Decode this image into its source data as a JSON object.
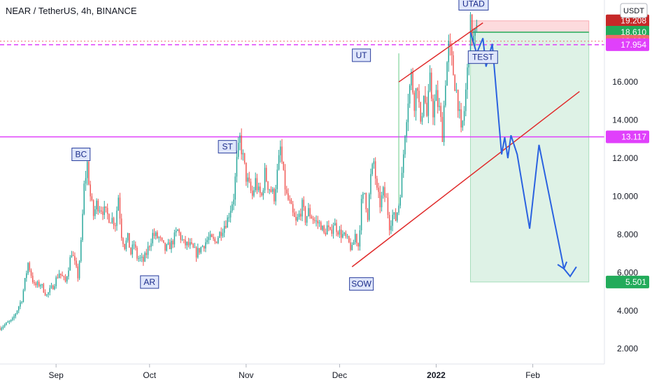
{
  "header": {
    "title": "NEAR / TetherUS, 4h, BINANCE"
  },
  "currency_label": "USDT",
  "chart_data": {
    "type": "candlestick",
    "title": "NEAR / TetherUS, 4h, BINANCE",
    "y_ticks": [
      "2.000",
      "4.000",
      "6.000",
      "8.000",
      "10.000",
      "12.000",
      "14.000",
      "16.000"
    ],
    "ylim": [
      1.2,
      20.3
    ],
    "x_ticks": [
      {
        "label": "Sep",
        "day": 0,
        "bold": false
      },
      {
        "label": "Oct",
        "day": 30,
        "bold": false
      },
      {
        "label": "Nov",
        "day": 61,
        "bold": false
      },
      {
        "label": "Dec",
        "day": 91,
        "bold": false
      },
      {
        "label": "2022",
        "day": 122,
        "bold": true
      },
      {
        "label": "Feb",
        "day": 153,
        "bold": false
      }
    ],
    "xlim": [
      -18,
      176
    ],
    "price_path": [
      [
        -18,
        3.1
      ],
      [
        -14,
        3.5
      ],
      [
        -11,
        4.6
      ],
      [
        -9,
        6.5
      ],
      [
        -7,
        5.3
      ],
      [
        -5,
        5.4
      ],
      [
        -3,
        4.8
      ],
      [
        -1,
        5.3
      ],
      [
        1,
        6.0
      ],
      [
        3,
        5.5
      ],
      [
        5,
        7.1
      ],
      [
        7,
        5.8
      ],
      [
        8,
        7.5
      ],
      [
        9,
        10.5
      ],
      [
        10,
        11.7
      ],
      [
        11,
        10.0
      ],
      [
        12,
        9.0
      ],
      [
        13,
        9.6
      ],
      [
        15,
        9.3
      ],
      [
        17,
        8.9
      ],
      [
        18,
        8.8
      ],
      [
        19,
        8.6
      ],
      [
        20,
        10.0
      ],
      [
        21,
        8.0
      ],
      [
        22,
        7.4
      ],
      [
        23,
        7.8
      ],
      [
        24,
        7.0
      ],
      [
        25,
        7.5
      ],
      [
        26,
        6.8
      ],
      [
        28,
        6.6
      ],
      [
        29,
        7.0
      ],
      [
        30,
        7.5
      ],
      [
        31,
        8.0
      ],
      [
        33,
        7.8
      ],
      [
        35,
        7.2
      ],
      [
        37,
        7.5
      ],
      [
        39,
        8.2
      ],
      [
        41,
        7.5
      ],
      [
        43,
        7.4
      ],
      [
        45,
        7.0
      ],
      [
        47,
        7.4
      ],
      [
        49,
        7.8
      ],
      [
        51,
        7.6
      ],
      [
        53,
        8.2
      ],
      [
        55,
        8.8
      ],
      [
        57,
        10.0
      ],
      [
        58,
        11.8
      ],
      [
        59,
        13.0
      ],
      [
        60,
        12.0
      ],
      [
        61,
        11.0
      ],
      [
        62,
        10.5
      ],
      [
        63,
        10.0
      ],
      [
        64,
        10.8
      ],
      [
        65,
        10.2
      ],
      [
        66,
        10.0
      ],
      [
        67,
        11.2
      ],
      [
        68,
        10.6
      ],
      [
        69,
        10.3
      ],
      [
        70,
        10.0
      ],
      [
        71,
        11.2
      ],
      [
        72,
        12.5
      ],
      [
        73,
        11.0
      ],
      [
        74,
        10.0
      ],
      [
        75,
        9.6
      ],
      [
        76,
        9.0
      ],
      [
        77,
        8.6
      ],
      [
        78,
        9.0
      ],
      [
        79,
        9.5
      ],
      [
        80,
        8.8
      ],
      [
        81,
        9.2
      ],
      [
        83,
        8.7
      ],
      [
        85,
        8.5
      ],
      [
        86,
        8.0
      ],
      [
        87,
        8.4
      ],
      [
        88,
        8.0
      ],
      [
        89,
        8.6
      ],
      [
        91,
        8.1
      ],
      [
        93,
        7.8
      ],
      [
        95,
        7.2
      ],
      [
        96,
        8.0
      ],
      [
        97,
        7.4
      ],
      [
        98,
        9.6
      ],
      [
        99,
        10.2
      ],
      [
        100,
        9.0
      ],
      [
        101,
        11.0
      ],
      [
        102,
        11.8
      ],
      [
        103,
        10.2
      ],
      [
        104,
        9.6
      ],
      [
        105,
        10.2
      ],
      [
        106,
        9.8
      ],
      [
        107,
        8.5
      ],
      [
        108,
        9.0
      ],
      [
        109,
        8.8
      ],
      [
        110,
        9.6
      ],
      [
        111,
        11.0
      ],
      [
        112,
        13.5
      ],
      [
        113,
        15.2
      ],
      [
        114,
        16.3
      ],
      [
        115,
        15.0
      ],
      [
        116,
        16.0
      ],
      [
        117,
        13.5
      ],
      [
        118,
        15.6
      ],
      [
        119,
        14.2
      ],
      [
        120,
        16.0
      ],
      [
        121,
        14.5
      ],
      [
        122,
        15.2
      ],
      [
        123,
        14.5
      ],
      [
        124,
        13.3
      ],
      [
        125,
        16.2
      ],
      [
        126,
        17.8
      ],
      [
        127,
        17.0
      ],
      [
        128,
        16.0
      ],
      [
        129,
        15.0
      ],
      [
        130,
        13.2
      ],
      [
        131,
        14.5
      ],
      [
        132,
        16.5
      ],
      [
        133,
        18.9
      ],
      [
        134,
        18.2
      ],
      [
        135,
        18.5
      ]
    ],
    "levels": {
      "upper_dashed": "17.954",
      "support": "13.117",
      "target": "5.501",
      "stop_top": "19.208",
      "stop_bottom": "18.610",
      "current": "18.136"
    },
    "level_colors": {
      "upper_dashed": "#e040fb",
      "support": "#e040fb",
      "target": "#22ab5a",
      "stop_top": "#c62828",
      "stop_bottom": "#22ab5a",
      "current": "#f06a6a"
    },
    "level_values": {
      "upper_dashed": 17.954,
      "support": 13.117,
      "target": 5.501,
      "stop_top": 19.208,
      "stop_bottom": 18.61,
      "current": 18.136
    },
    "position_box": {
      "start_day": 133,
      "end_day": 171,
      "entry": 18.61,
      "stop": 19.208,
      "target": 5.501
    },
    "channel_lower": [
      [
        95,
        6.3
      ],
      [
        168,
        15.5
      ]
    ],
    "channel_upper": [
      [
        110,
        16.0
      ],
      [
        137,
        19.1
      ]
    ],
    "ut_marker_day": 110,
    "projection_path": [
      [
        133,
        18.6
      ],
      [
        135,
        17.5
      ],
      [
        137,
        18.3
      ],
      [
        138,
        16.8
      ],
      [
        140,
        18.0
      ],
      [
        143,
        12.2
      ],
      [
        144,
        13.1
      ],
      [
        145,
        12.0
      ],
      [
        146,
        13.2
      ],
      [
        148,
        12.2
      ],
      [
        152,
        8.3
      ],
      [
        155,
        12.7
      ],
      [
        163,
        6.2
      ],
      [
        165,
        5.8
      ],
      [
        167,
        6.3
      ]
    ],
    "annotations": [
      {
        "label": "BC",
        "day": 8,
        "price": 12.2
      },
      {
        "label": "ST",
        "day": 55,
        "price": 12.6
      },
      {
        "label": "AR",
        "day": 30,
        "price": 5.5
      },
      {
        "label": "UT",
        "day": 98,
        "price": 17.4
      },
      {
        "label": "UTAD",
        "day": 134,
        "price": 20.1
      },
      {
        "label": "TEST",
        "day": 137,
        "price": 17.3
      },
      {
        "label": "SOW",
        "day": 98,
        "price": 5.4
      }
    ]
  }
}
